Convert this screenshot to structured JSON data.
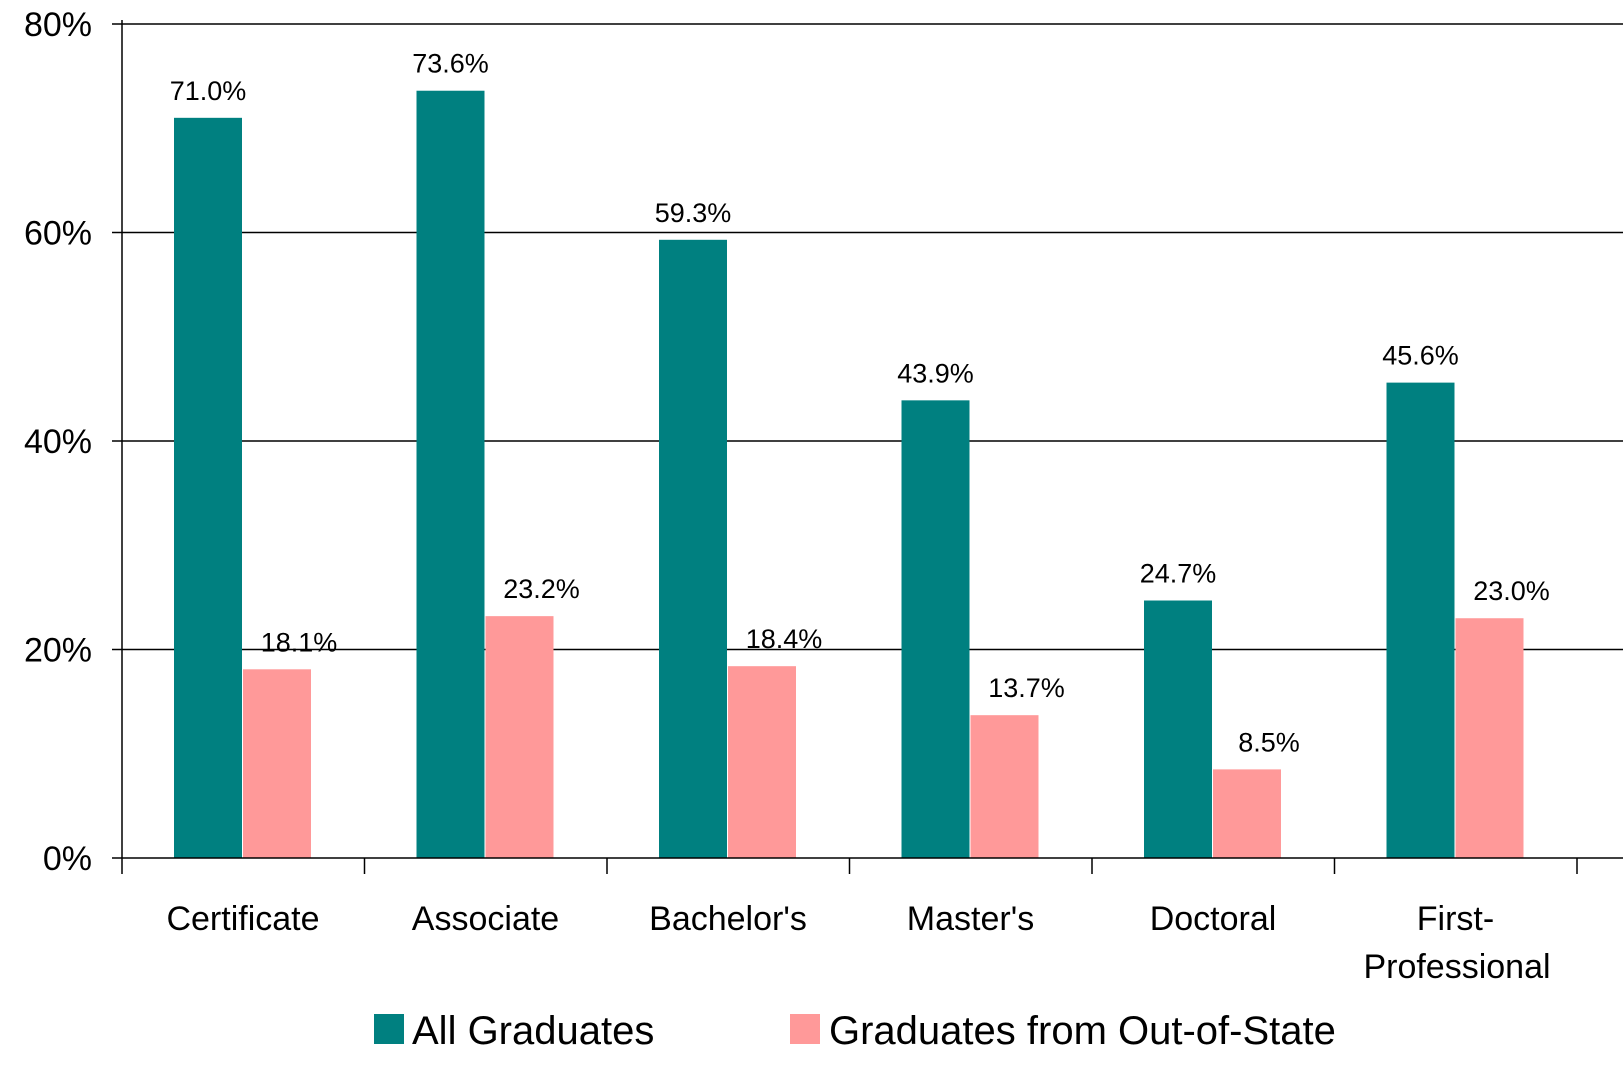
{
  "chart_data": {
    "type": "bar",
    "categories": [
      [
        "Certificate"
      ],
      [
        "Associate"
      ],
      [
        "Bachelor's"
      ],
      [
        "Master's"
      ],
      [
        "Doctoral"
      ],
      [
        "First-",
        "Professional"
      ]
    ],
    "series": [
      {
        "name": "All Graduates",
        "color": "#008080",
        "values": [
          71.0,
          73.6,
          59.3,
          43.9,
          24.7,
          45.6
        ],
        "labels": [
          "71.0%",
          "73.6%",
          "59.3%",
          "43.9%",
          "24.7%",
          "45.6%"
        ]
      },
      {
        "name": "Graduates from Out-of-State",
        "color": "#FF9999",
        "values": [
          18.1,
          23.2,
          18.4,
          13.7,
          8.5,
          23.0
        ],
        "labels": [
          "18.1%",
          "23.2%",
          "18.4%",
          "13.7%",
          "8.5%",
          "23.0%"
        ]
      }
    ],
    "title": "",
    "xlabel": "",
    "ylabel": "",
    "ylim": [
      0,
      80
    ],
    "yticks": [
      0,
      20,
      40,
      60,
      80
    ],
    "ytick_labels": [
      "0%",
      "20%",
      "40%",
      "60%",
      "80%"
    ],
    "grid": true,
    "legend": "bottom"
  }
}
